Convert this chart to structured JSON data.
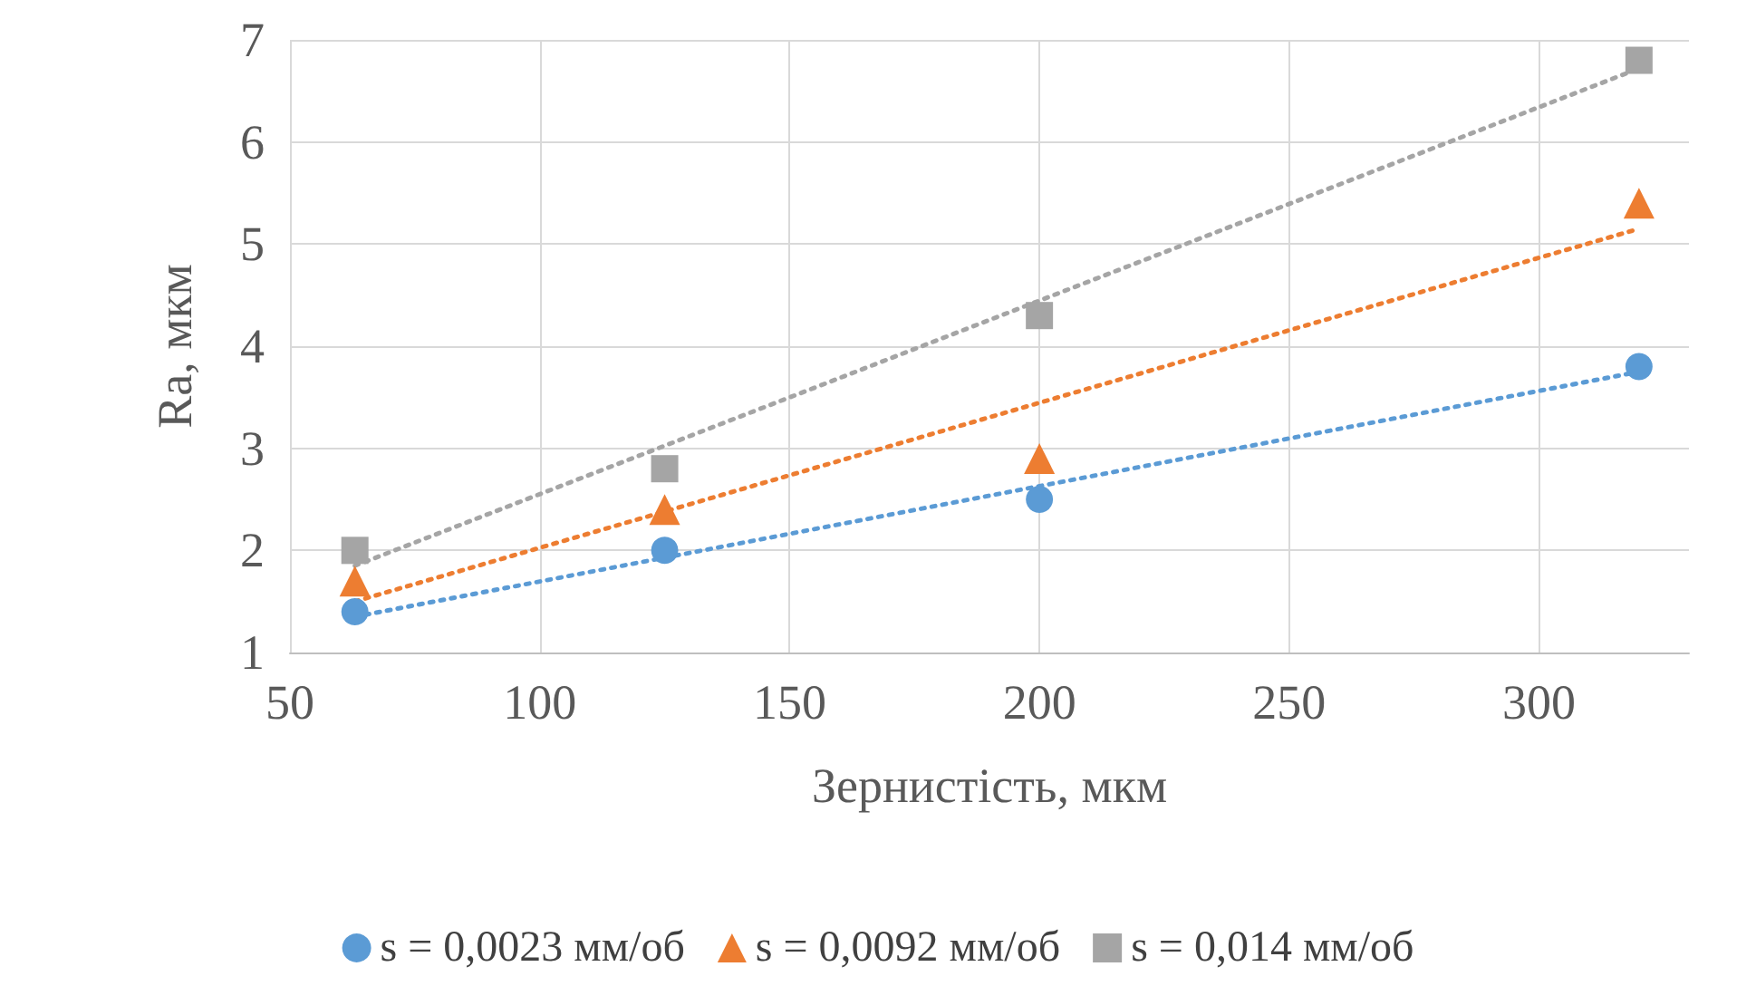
{
  "chart_data": {
    "type": "scatter",
    "xlabel": "Зернистість, мкм",
    "ylabel": "Ra, мкм",
    "xlim": [
      50,
      330
    ],
    "xticks": [
      50,
      100,
      150,
      200,
      250,
      300
    ],
    "ylim": [
      1,
      7
    ],
    "yticks": [
      1,
      2,
      3,
      4,
      5,
      6,
      7
    ],
    "grid": true,
    "legend": "bottom",
    "series": [
      {
        "name": "s = 0,0023 мм/об",
        "color": "#5b9bd5",
        "marker": "circle",
        "x": [
          63,
          125,
          200,
          320
        ],
        "values": [
          1.4,
          2.0,
          2.5,
          3.8
        ]
      },
      {
        "name": "s = 0,0092 мм/об",
        "color": "#ed7d31",
        "marker": "triangle",
        "x": [
          63,
          125,
          200,
          320
        ],
        "values": [
          1.7,
          2.4,
          2.9,
          5.4
        ]
      },
      {
        "name": "s = 0,014 мм/об",
        "color": "#a5a5a5",
        "marker": "square",
        "x": [
          63,
          125,
          200,
          320
        ],
        "values": [
          2.0,
          2.8,
          4.3,
          6.8
        ]
      },
      {
        "type": "line",
        "color": "#5b9bd5",
        "marker": "none",
        "line_style": "dotted",
        "x": [
          63,
          320
        ],
        "values": [
          1.35,
          3.75
        ]
      },
      {
        "type": "line",
        "color": "#ed7d31",
        "marker": "none",
        "line_style": "dotted",
        "x": [
          63,
          320
        ],
        "values": [
          1.5,
          5.15
        ]
      },
      {
        "type": "line",
        "color": "#a5a5a5",
        "marker": "none",
        "line_style": "dotted",
        "x": [
          63,
          320
        ],
        "values": [
          1.85,
          6.72
        ]
      }
    ]
  }
}
